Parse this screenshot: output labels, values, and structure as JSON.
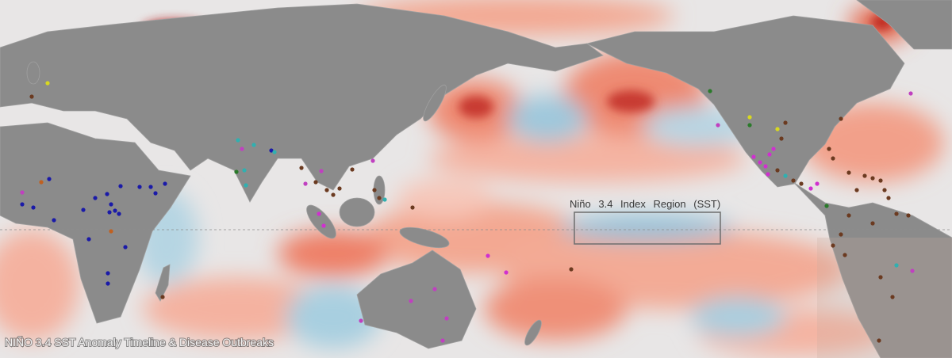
{
  "map": {
    "region_label": "Niño 3.4 Index Region (SST)",
    "caption": "NIÑO 3.4 SST Anomaly Timeline & Disease Outbreaks"
  }
}
